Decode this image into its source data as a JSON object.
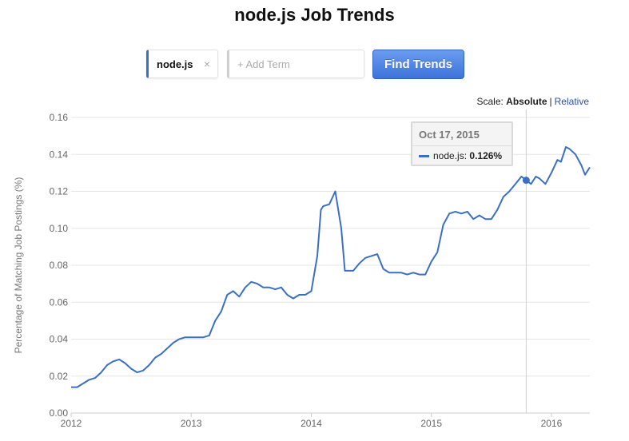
{
  "page": {
    "title": "node.js Job Trends"
  },
  "search": {
    "active_term": "node.js",
    "close_symbol": "×",
    "add_placeholder": "+ Add Term",
    "find_label": "Find Trends"
  },
  "scale": {
    "label": "Scale:",
    "absolute": "Absolute",
    "separator": "|",
    "relative": "Relative"
  },
  "tooltip": {
    "date": "Oct 17, 2015",
    "series": "node.js",
    "colon": ":",
    "value": "0.126%"
  },
  "colors": {
    "line": "#3b6fc4",
    "grid": "#e6e6e6",
    "crosshair": "#d0d0d0"
  },
  "chart_data": {
    "type": "line",
    "title": "node.js Job Trends",
    "ylabel": "Percentage of Matching Job Postings (%)",
    "xlabel": "",
    "xlim": [
      2012.0,
      2016.32
    ],
    "ylim": [
      0,
      0.16
    ],
    "y_ticks": [
      "0.00",
      "0.02",
      "0.04",
      "0.06",
      "0.08",
      "0.10",
      "0.12",
      "0.14",
      "0.16"
    ],
    "x_ticks": [
      "2012",
      "2013",
      "2014",
      "2015",
      "2016"
    ],
    "grid": true,
    "legend": "none",
    "highlight": {
      "x": 2015.79,
      "y": 0.126
    },
    "series": [
      {
        "name": "node.js",
        "x": [
          2012.0,
          2012.05,
          2012.1,
          2012.15,
          2012.2,
          2012.25,
          2012.3,
          2012.35,
          2012.4,
          2012.45,
          2012.5,
          2012.55,
          2012.6,
          2012.65,
          2012.7,
          2012.75,
          2012.8,
          2012.85,
          2012.9,
          2012.95,
          2013.0,
          2013.05,
          2013.1,
          2013.15,
          2013.2,
          2013.22,
          2013.25,
          2013.3,
          2013.35,
          2013.4,
          2013.45,
          2013.5,
          2013.55,
          2013.6,
          2013.65,
          2013.7,
          2013.75,
          2013.8,
          2013.85,
          2013.9,
          2013.95,
          2014.0,
          2014.05,
          2014.08,
          2014.1,
          2014.15,
          2014.2,
          2014.25,
          2014.28,
          2014.32,
          2014.35,
          2014.4,
          2014.45,
          2014.5,
          2014.55,
          2014.6,
          2014.65,
          2014.7,
          2014.75,
          2014.8,
          2014.85,
          2014.9,
          2014.95,
          2015.0,
          2015.05,
          2015.1,
          2015.15,
          2015.2,
          2015.25,
          2015.3,
          2015.35,
          2015.4,
          2015.45,
          2015.5,
          2015.55,
          2015.6,
          2015.65,
          2015.7,
          2015.75,
          2015.79,
          2015.83,
          2015.87,
          2015.9,
          2015.95,
          2016.0,
          2016.05,
          2016.08,
          2016.12,
          2016.15,
          2016.2,
          2016.25,
          2016.28,
          2016.32
        ],
        "values": [
          0.014,
          0.014,
          0.016,
          0.018,
          0.019,
          0.022,
          0.026,
          0.028,
          0.029,
          0.027,
          0.024,
          0.022,
          0.023,
          0.026,
          0.03,
          0.032,
          0.035,
          0.038,
          0.04,
          0.041,
          0.041,
          0.041,
          0.041,
          0.042,
          0.05,
          0.052,
          0.055,
          0.064,
          0.066,
          0.063,
          0.068,
          0.071,
          0.07,
          0.068,
          0.068,
          0.067,
          0.068,
          0.064,
          0.062,
          0.064,
          0.064,
          0.066,
          0.085,
          0.11,
          0.112,
          0.113,
          0.12,
          0.1,
          0.077,
          0.077,
          0.077,
          0.081,
          0.084,
          0.085,
          0.086,
          0.078,
          0.076,
          0.076,
          0.076,
          0.075,
          0.076,
          0.075,
          0.075,
          0.082,
          0.087,
          0.102,
          0.108,
          0.109,
          0.108,
          0.109,
          0.105,
          0.107,
          0.105,
          0.105,
          0.11,
          0.117,
          0.12,
          0.124,
          0.128,
          0.126,
          0.124,
          0.128,
          0.127,
          0.124,
          0.13,
          0.137,
          0.136,
          0.144,
          0.143,
          0.14,
          0.134,
          0.129,
          0.133
        ]
      }
    ]
  }
}
